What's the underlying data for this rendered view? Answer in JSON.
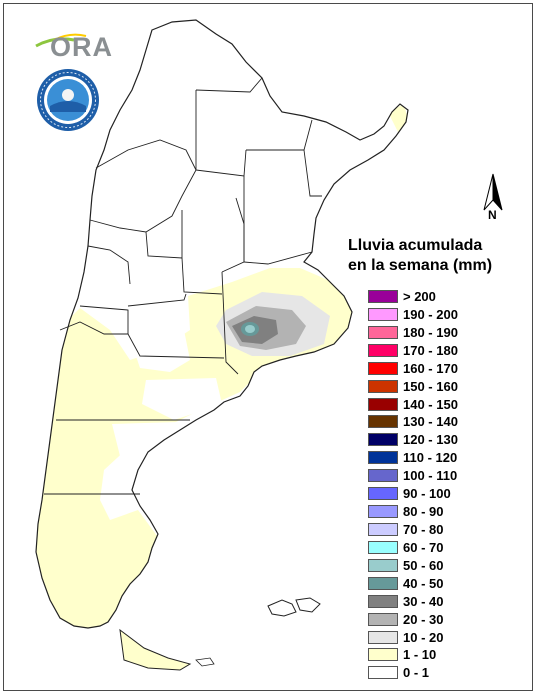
{
  "header": {
    "logo_text": "ORA",
    "seal_label": "SERVICIO METEOROLÓGICO NACIONAL ARGENTINA"
  },
  "north_arrow": {
    "label": "N"
  },
  "legend": {
    "title_line1": "Lluvia acumulada",
    "title_line2": "en la semana (mm)",
    "items": [
      {
        "label": "> 200",
        "color": "#990099"
      },
      {
        "label": "190 - 200",
        "color": "#ff99ff"
      },
      {
        "label": "180 - 190",
        "color": "#ff6699"
      },
      {
        "label": "170 - 180",
        "color": "#ff0066"
      },
      {
        "label": "160 - 170",
        "color": "#ff0000"
      },
      {
        "label": "150 - 160",
        "color": "#cc3300"
      },
      {
        "label": "140 - 150",
        "color": "#990000"
      },
      {
        "label": "130 - 140",
        "color": "#663300"
      },
      {
        "label": "120 - 130",
        "color": "#000066"
      },
      {
        "label": "110 - 120",
        "color": "#003399"
      },
      {
        "label": "100 - 110",
        "color": "#6666cc"
      },
      {
        "label": "90 - 100",
        "color": "#6666ff"
      },
      {
        "label": "80 - 90",
        "color": "#9999ff"
      },
      {
        "label": "70 - 80",
        "color": "#ccccff"
      },
      {
        "label": "60 - 70",
        "color": "#99ffff"
      },
      {
        "label": "50 - 60",
        "color": "#99cccc"
      },
      {
        "label": "40 - 50",
        "color": "#669999"
      },
      {
        "label": "30 - 40",
        "color": "#808080"
      },
      {
        "label": "20 - 30",
        "color": "#b3b3b3"
      },
      {
        "label": "10 - 20",
        "color": "#e6e6e6"
      },
      {
        "label": "1 - 10",
        "color": "#ffffcc"
      },
      {
        "label": "0 - 1",
        "color": "#ffffff"
      }
    ]
  },
  "map": {
    "land_color": "#ffffff",
    "border_color": "#222222"
  }
}
